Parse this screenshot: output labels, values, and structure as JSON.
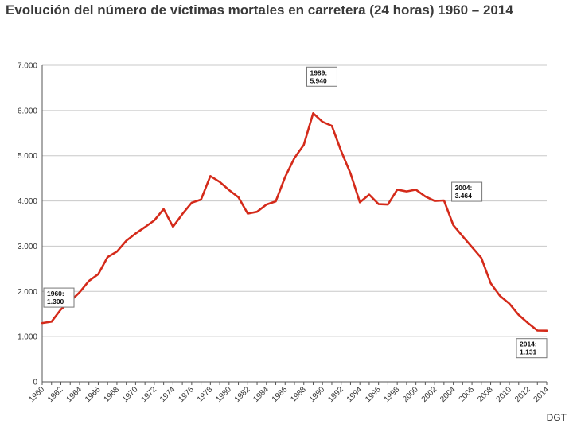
{
  "title": "Evolución del número de víctimas mortales en carretera (24 horas) 1960 – 2014",
  "source": "DGT",
  "colors": {
    "line": "#d42a1a",
    "grid": "#c8c8c8",
    "axis": "#555555"
  },
  "chart_data": {
    "type": "line",
    "title": "Evolución del número de víctimas mortales en carretera (24 horas) 1960 – 2014",
    "xlabel": "",
    "ylabel": "",
    "ylim": [
      0,
      7000
    ],
    "y_ticks": [
      "0",
      "1.000",
      "2.000",
      "3.000",
      "4.000",
      "5.000",
      "6.000",
      "7.000"
    ],
    "y_tick_values": [
      0,
      1000,
      2000,
      3000,
      4000,
      5000,
      6000,
      7000
    ],
    "x_tick_labels": [
      "1960",
      "1962",
      "1964",
      "1966",
      "1968",
      "1970",
      "1972",
      "1974",
      "1976",
      "1978",
      "1980",
      "1982",
      "1984",
      "1986",
      "1988",
      "1990",
      "1992",
      "1994",
      "1996",
      "1998",
      "2000",
      "2002",
      "2004",
      "2006",
      "2008",
      "2010",
      "2012",
      "2014"
    ],
    "grid": true,
    "legend": "none",
    "series": [
      {
        "x": [
          1960,
          1961,
          1962,
          1963,
          1964,
          1965,
          1966,
          1967,
          1968,
          1969,
          1970,
          1971,
          1972,
          1973,
          1974,
          1975,
          1976,
          1977,
          1978,
          1979,
          1980,
          1981,
          1982,
          1983,
          1984,
          1985,
          1986,
          1987,
          1988,
          1989,
          1990,
          1991,
          1992,
          1993,
          1994,
          1995,
          1996,
          1997,
          1998,
          1999,
          2000,
          2001,
          2002,
          2003,
          2004,
          2005,
          2006,
          2007,
          2008,
          2009,
          2010,
          2011,
          2012,
          2013,
          2014
        ],
        "values": [
          1300,
          1330,
          1600,
          1780,
          1980,
          2230,
          2380,
          2760,
          2880,
          3120,
          3280,
          3420,
          3570,
          3820,
          3430,
          3710,
          3960,
          4030,
          4550,
          4420,
          4240,
          4080,
          3720,
          3760,
          3920,
          3990,
          4530,
          4950,
          5240,
          5940,
          5750,
          5660,
          5100,
          4610,
          3970,
          4140,
          3930,
          3920,
          4250,
          4210,
          4250,
          4100,
          4000,
          4010,
          3464,
          3220,
          2980,
          2740,
          2180,
          1900,
          1730,
          1480,
          1300,
          1134,
          1131
        ]
      }
    ],
    "annotations": [
      {
        "x": 1960,
        "y": 1300,
        "lines": [
          "1960:",
          "1.300"
        ]
      },
      {
        "x": 1989,
        "y": 5940,
        "lines": [
          "1989:",
          "5.940"
        ]
      },
      {
        "x": 2004,
        "y": 3464,
        "lines": [
          "2004:",
          "3.464"
        ]
      },
      {
        "x": 2014,
        "y": 1131,
        "lines": [
          "2014:",
          "1.131"
        ]
      }
    ]
  }
}
